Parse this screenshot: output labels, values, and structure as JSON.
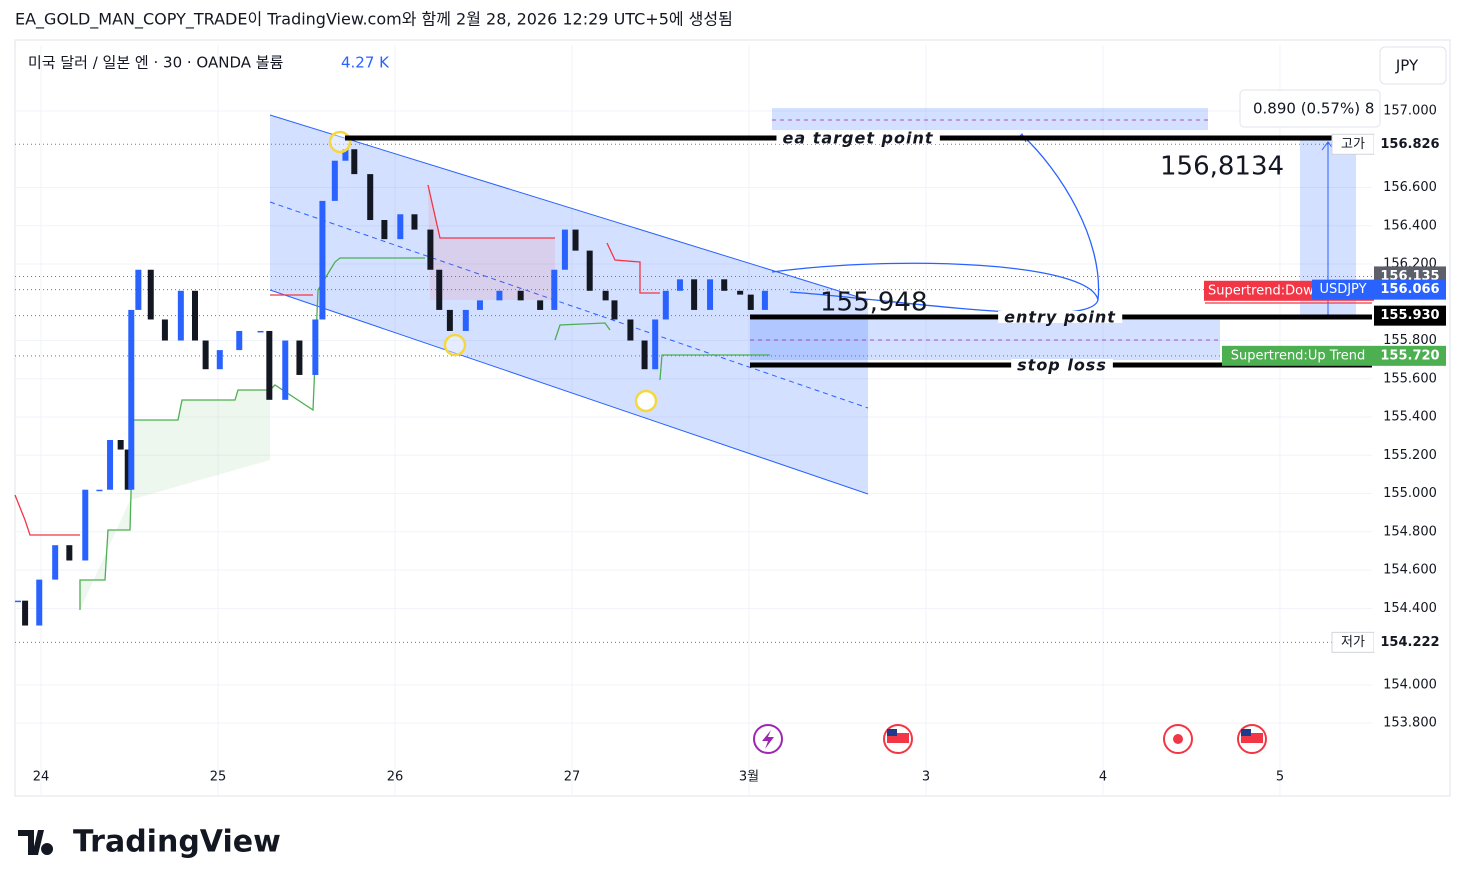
{
  "header": {
    "title": "EA_GOLD_MAN_COPY_TRADE이 TradingView.com와 함께 2월 28, 2026 12:29 UTC+5에 생성됨",
    "symbol": "미국 달러 / 일본 엔 · 30 · OANDA  볼륨",
    "volume": "4.27 K",
    "currency": "JPY"
  },
  "chart_data": {
    "type": "candlestick",
    "x": [
      -0.13,
      -0.09,
      -0.01,
      0.08,
      0.16,
      0.25,
      0.33,
      0.39,
      0.45,
      0.49,
      0.51,
      0.55,
      0.62,
      0.7,
      0.79,
      0.87,
      0.93,
      1.01,
      1.12,
      1.24,
      1.29,
      1.38,
      1.46,
      1.55,
      1.59,
      1.66,
      1.72,
      1.77,
      1.86,
      1.94,
      2.03,
      2.11,
      2.2,
      2.25,
      2.31,
      2.4,
      2.48,
      2.59,
      2.71,
      2.82,
      2.9,
      2.96,
      3.02,
      3.1,
      3.19,
      3.24,
      3.33,
      3.41,
      3.47,
      3.53,
      3.61,
      3.69,
      3.78,
      3.86,
      3.95,
      4.01,
      4.09
    ],
    "series": [
      {
        "name": "USDJPY",
        "color": "#2962ff",
        "down_color": "#131722",
        "values": [
          154.44,
          154.31,
          154.55,
          154.73,
          154.65,
          155.02,
          155.02,
          155.28,
          155.23,
          155.02,
          155.96,
          156.17,
          155.91,
          155.8,
          156.06,
          155.8,
          155.65,
          155.75,
          155.85,
          155.85,
          155.49,
          155.8,
          155.62,
          155.91,
          156.53,
          156.74,
          156.8,
          156.67,
          156.43,
          156.33,
          156.46,
          156.38,
          156.17,
          155.96,
          155.85,
          155.96,
          156.01,
          156.06,
          156.01,
          155.96,
          156.17,
          156.38,
          156.27,
          156.06,
          156.01,
          155.91,
          155.8,
          155.65,
          155.91,
          156.06,
          156.12,
          155.96,
          156.12,
          156.06,
          156.04,
          155.96,
          156.06
        ]
      }
    ],
    "xlim": [
      -0.147,
      7.52
    ],
    "ylim": [
      153.424,
      157.345
    ],
    "xticks": [
      {
        "value": 0,
        "label": "24"
      },
      {
        "value": 1,
        "label": "25"
      },
      {
        "value": 2,
        "label": "26"
      },
      {
        "value": 3,
        "label": "27"
      },
      {
        "value": 4,
        "label": "3월"
      },
      {
        "value": 5,
        "label": "3"
      },
      {
        "value": 6,
        "label": "4"
      },
      {
        "value": 7,
        "label": "5"
      }
    ],
    "yticks": [
      {
        "value": 153.8,
        "label": "153.800"
      },
      {
        "value": 154,
        "label": "154.000"
      },
      {
        "value": 154.4,
        "label": "154.400"
      },
      {
        "value": 154.6,
        "label": "154.600"
      },
      {
        "value": 154.8,
        "label": "154.800"
      },
      {
        "value": 155,
        "label": "155.000"
      },
      {
        "value": 155.2,
        "label": "155.200"
      },
      {
        "value": 155.4,
        "label": "155.400"
      },
      {
        "value": 155.6,
        "label": "155.600"
      },
      {
        "value": 155.8,
        "label": "155.800"
      },
      {
        "value": 156.2,
        "label": "156.200"
      },
      {
        "value": 156.4,
        "label": "156.400"
      },
      {
        "value": 156.6,
        "label": "156.600"
      },
      {
        "value": 157,
        "label": "157.000"
      }
    ],
    "grid": true,
    "levels": [
      {
        "label": "ea target point",
        "value": 156.859
      },
      {
        "label": "entry point",
        "value": 155.923
      },
      {
        "label": "stop loss",
        "value": 155.672
      }
    ],
    "indicator_labels": [
      {
        "text": "Supertrend:Dow",
        "value": 156.06,
        "color": "#f23645"
      }
    ],
    "price_tags": [
      {
        "value": 156.826,
        "label": "156.826",
        "bg": "#ffffff",
        "fg": "#131722",
        "note": "고가"
      },
      {
        "value": 154.222,
        "label": "154.222",
        "bg": "#ffffff",
        "fg": "#131722",
        "note": "저가"
      },
      {
        "value": 156.135,
        "label": "156.135",
        "bg": "#5d606b",
        "fg": "#ffffff"
      },
      {
        "value": 156.066,
        "label": "156.066",
        "bg": "#2962ff",
        "fg": "#ffffff"
      },
      {
        "value": 155.93,
        "label": "155.930",
        "bg": "#000000",
        "fg": "#ffffff"
      },
      {
        "value": 155.72,
        "label": "155.720",
        "bg": "#4caf50",
        "fg": "#ffffff",
        "note": "Supertrend:Up Trend"
      }
    ],
    "annotations": [
      "155,948",
      "156,8134",
      "0.890 (0.57%) 8"
    ]
  },
  "footer": {
    "brand": "TradingView"
  }
}
